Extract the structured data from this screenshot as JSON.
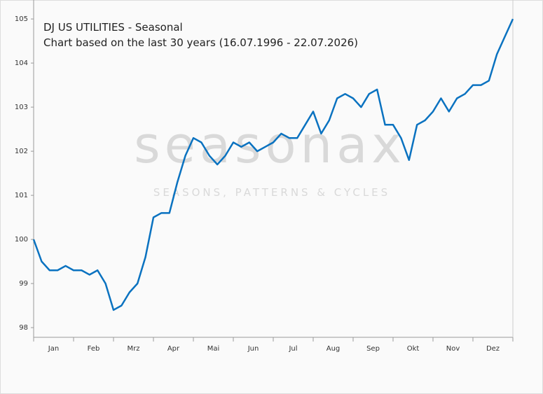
{
  "chart_data": {
    "type": "line",
    "title": "DJ US UTILITIES - Seasonal",
    "subtitle": "Chart based on the last 30 years (16.07.1996 - 22.07.2026)",
    "watermark": "seasonax",
    "watermark_sub": "SEASONS, PATTERNS & CYCLES",
    "categories": [
      "Jan",
      "Feb",
      "Mrz",
      "Apr",
      "Mai",
      "Jun",
      "Jul",
      "Aug",
      "Sep",
      "Okt",
      "Nov",
      "Dez"
    ],
    "xlim": [
      0,
      12
    ],
    "xticks": [
      0,
      1,
      2,
      3,
      4,
      5,
      6,
      7,
      8,
      9,
      10,
      11,
      12
    ],
    "ylim": [
      97.78,
      105.43
    ],
    "yticks": [
      98,
      99,
      100,
      101,
      102,
      103,
      104,
      105
    ],
    "series": [
      {
        "color": "#0a72c0",
        "x": [
          0,
          0.2,
          0.4,
          0.6,
          0.8,
          1,
          1.2,
          1.4,
          1.6,
          1.8,
          2,
          2.2,
          2.4,
          2.6,
          2.8,
          3,
          3.2,
          3.4,
          3.6,
          3.8,
          4,
          4.2,
          4.4,
          4.6,
          4.8,
          5,
          5.2,
          5.4,
          5.6,
          5.8,
          6,
          6.2,
          6.4,
          6.6,
          6.8,
          7,
          7.2,
          7.4,
          7.6,
          7.8,
          8,
          8.2,
          8.4,
          8.6,
          8.8,
          9,
          9.2,
          9.4,
          9.6,
          9.8,
          10,
          10.2,
          10.4,
          10.6,
          10.8,
          11,
          11.2,
          11.4,
          11.6,
          11.8,
          12
        ],
        "values": [
          100.0,
          99.5,
          99.3,
          99.3,
          99.4,
          99.3,
          99.3,
          99.2,
          99.3,
          99.0,
          98.4,
          98.5,
          98.8,
          99.0,
          99.6,
          100.5,
          100.6,
          100.6,
          101.3,
          101.9,
          102.3,
          102.2,
          101.9,
          101.7,
          101.9,
          102.2,
          102.1,
          102.2,
          102.0,
          102.1,
          102.2,
          102.4,
          102.3,
          102.3,
          102.6,
          102.9,
          102.4,
          102.7,
          103.2,
          103.3,
          103.2,
          103.0,
          103.3,
          103.4,
          102.6,
          102.6,
          102.3,
          101.8,
          102.6,
          102.7,
          102.9,
          103.2,
          102.9,
          103.2,
          103.3,
          103.5,
          103.5,
          103.6,
          104.2,
          104.6,
          105.0
        ]
      }
    ]
  }
}
